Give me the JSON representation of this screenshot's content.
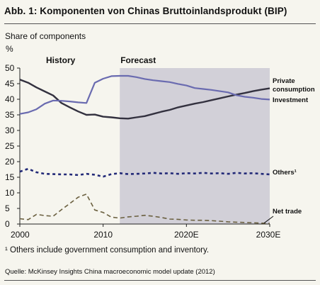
{
  "title": "Abb. 1: Komponenten von Chinas Bruttoinlandsprodukt (BIP)",
  "ylabel": "Share of components",
  "unit": "%",
  "footnote": "¹ Others include government consumption and inventory.",
  "source": "Quelle: McKinsey Insights China macroeconomic model update (2012)",
  "chart_data": {
    "type": "line",
    "xlim": [
      2000,
      2030
    ],
    "ylim": [
      0,
      50
    ],
    "yticks": [
      0,
      5,
      10,
      15,
      20,
      25,
      30,
      35,
      40,
      45,
      50
    ],
    "xticks": [
      {
        "value": 2000,
        "label": "2000"
      },
      {
        "value": 2010,
        "label": "2010"
      },
      {
        "value": 2020,
        "label": "2020E"
      },
      {
        "value": 2030,
        "label": "2030E"
      }
    ],
    "forecast_start": 2012,
    "annotations": {
      "history": "History",
      "forecast": "Forecast"
    },
    "colors": {
      "private": "#33313f",
      "investment": "#6a6bb0",
      "others": "#232a78",
      "net_trade": "#6b6040",
      "forecast_band": "#d2d0d8"
    },
    "series": [
      {
        "name": "Private consumption",
        "key": "private",
        "x": [
          2000,
          2001,
          2002,
          2003,
          2004,
          2005,
          2006,
          2007,
          2008,
          2009,
          2010,
          2011,
          2012,
          2013,
          2014,
          2015,
          2016,
          2017,
          2018,
          2019,
          2020,
          2021,
          2022,
          2023,
          2024,
          2025,
          2026,
          2027,
          2028,
          2029,
          2030
        ],
        "values": [
          46.3,
          45.3,
          43.8,
          42.5,
          41.2,
          38.8,
          37.4,
          36.1,
          35.0,
          35.1,
          34.4,
          34.2,
          33.9,
          33.8,
          34.2,
          34.6,
          35.3,
          36.0,
          36.6,
          37.4,
          38.0,
          38.6,
          39.1,
          39.7,
          40.3,
          40.9,
          41.5,
          42.0,
          42.6,
          43.1,
          43.5
        ]
      },
      {
        "name": "Investment",
        "key": "investment",
        "x": [
          2000,
          2001,
          2002,
          2003,
          2004,
          2005,
          2006,
          2007,
          2008,
          2009,
          2010,
          2011,
          2012,
          2013,
          2014,
          2015,
          2016,
          2017,
          2018,
          2019,
          2020,
          2021,
          2022,
          2023,
          2024,
          2025,
          2026,
          2027,
          2028,
          2029,
          2030
        ],
        "values": [
          35.3,
          35.8,
          36.8,
          38.6,
          39.6,
          39.5,
          39.3,
          39.0,
          38.8,
          45.3,
          46.6,
          47.4,
          47.5,
          47.5,
          47.1,
          46.5,
          46.1,
          45.8,
          45.5,
          44.9,
          44.4,
          43.6,
          43.3,
          43.0,
          42.6,
          42.2,
          41.3,
          40.8,
          40.5,
          40.1,
          39.9
        ]
      },
      {
        "name": "Others¹",
        "key": "others",
        "x": [
          2000,
          2001,
          2002,
          2003,
          2004,
          2005,
          2006,
          2007,
          2008,
          2009,
          2010,
          2011,
          2012,
          2013,
          2014,
          2015,
          2016,
          2017,
          2018,
          2019,
          2020,
          2021,
          2022,
          2023,
          2024,
          2025,
          2026,
          2027,
          2028,
          2029,
          2030
        ],
        "values": [
          16.8,
          17.7,
          16.6,
          16.1,
          16.0,
          15.9,
          15.9,
          15.7,
          16.1,
          15.8,
          15.2,
          16.0,
          16.3,
          16.0,
          16.1,
          16.2,
          16.4,
          16.2,
          16.3,
          16.1,
          16.3,
          16.2,
          16.4,
          16.2,
          16.3,
          16.1,
          16.4,
          16.2,
          16.3,
          16.1,
          15.9
        ]
      },
      {
        "name": "Net trade",
        "key": "net_trade",
        "x": [
          2000,
          2001,
          2002,
          2003,
          2004,
          2005,
          2006,
          2007,
          2008,
          2009,
          2010,
          2011,
          2012,
          2013,
          2014,
          2015,
          2016,
          2017,
          2018,
          2019,
          2020,
          2021,
          2022,
          2023,
          2024,
          2025,
          2026,
          2027,
          2028,
          2029,
          2030
        ],
        "values": [
          1.7,
          1.4,
          3.1,
          2.7,
          2.5,
          4.6,
          6.6,
          8.6,
          9.6,
          4.5,
          3.7,
          2.2,
          1.9,
          2.3,
          2.5,
          2.8,
          2.5,
          2.1,
          1.6,
          1.5,
          1.3,
          1.2,
          1.2,
          1.1,
          0.9,
          0.7,
          0.6,
          0.5,
          0.4,
          0.3,
          0.2
        ]
      }
    ]
  }
}
